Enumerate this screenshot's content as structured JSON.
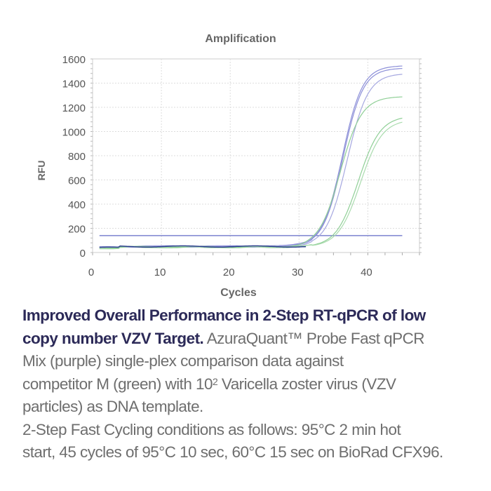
{
  "chart_data": {
    "type": "line",
    "title": "Amplification",
    "xlabel": "Cycles",
    "ylabel": "RFU",
    "xlim": [
      0,
      47.5
    ],
    "ylim": [
      0,
      1600
    ],
    "xticks": [
      0,
      10,
      20,
      30,
      40
    ],
    "yticks": [
      0,
      200,
      400,
      600,
      800,
      1000,
      1200,
      1400,
      1600
    ],
    "grid": true,
    "threshold": 140,
    "threshold_color": "#7c83cf",
    "x_range": [
      1,
      45
    ],
    "series": [
      {
        "name": "AzuraQuant purple 1",
        "color": "#8c8fd8",
        "baseline": 50,
        "plateau": 1545,
        "midpoint": 36.3,
        "slope": 1.45
      },
      {
        "name": "AzuraQuant purple 2",
        "color": "#8c8fd8",
        "baseline": 50,
        "plateau": 1525,
        "midpoint": 36.4,
        "slope": 1.45
      },
      {
        "name": "AzuraQuant purple 3",
        "color": "#a6a8e0",
        "baseline": 50,
        "plateau": 1480,
        "midpoint": 37.0,
        "slope": 1.5
      },
      {
        "name": "Competitor M green 1",
        "color": "#8fcf96",
        "baseline": 45,
        "plateau": 1290,
        "midpoint": 36.0,
        "slope": 1.55
      },
      {
        "name": "Competitor M green 2",
        "color": "#8fcf96",
        "baseline": 45,
        "plateau": 1130,
        "midpoint": 38.6,
        "slope": 1.6
      },
      {
        "name": "Competitor M green 3",
        "color": "#a9dbad",
        "baseline": 45,
        "plateau": 1100,
        "midpoint": 38.9,
        "slope": 1.6
      }
    ]
  },
  "caption": {
    "bold_line1": "Improved Overall Performance in 2-Step RT-qPCR of low",
    "bold_line2": "copy number VZV Target.",
    "line2_rest": " AzuraQuant™ Probe Fast qPCR",
    "line3": "Mix (purple) single-plex comparison data against",
    "line4_a": "competitor M (green) with 10",
    "line4_sup": "2",
    "line4_b": " Varicella zoster virus (VZV",
    "line5": "particles) as DNA template.",
    "line6": "2-Step Fast Cycling conditions as follows: 95°C 2 min hot",
    "line7": "start, 45 cycles of 95°C 10 sec, 60°C 15 sec on BioRad CFX96."
  }
}
